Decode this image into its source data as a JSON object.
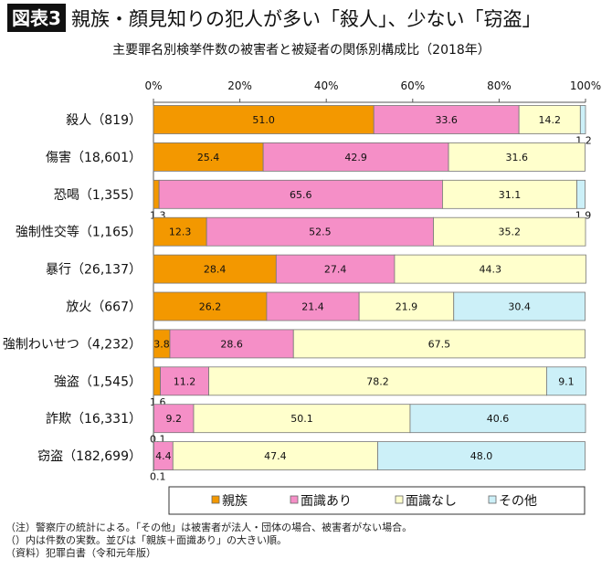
{
  "badge": "図表3",
  "title": "親族・顔見知りの犯人が多い「殺人」、少ない「窃盗」",
  "chart_data": {
    "type": "bar",
    "orientation": "horizontal",
    "stacked": true,
    "subtitle": "主要罪名別検挙件数の被害者と被疑者の関係別構成比（2018年）",
    "x_ticks": [
      "0%",
      "20%",
      "40%",
      "60%",
      "80%",
      "100%"
    ],
    "xlim": [
      0,
      100
    ],
    "categories": [
      "殺人（819）",
      "傷害（18,601）",
      "恐喝（1,355）",
      "強制性交等（1,165）",
      "暴行（26,137）",
      "放火（667）",
      "強制わいせつ（4,232）",
      "強盗（1,545）",
      "詐欺（16,331）",
      "窃盗（182,699）"
    ],
    "series": [
      {
        "name": "親族",
        "color": "#F39800",
        "values": [
          51.0,
          25.4,
          1.3,
          12.3,
          28.4,
          26.2,
          3.8,
          1.6,
          0.1,
          0.1
        ]
      },
      {
        "name": "面識あり",
        "color": "#F58FC7",
        "values": [
          33.6,
          42.9,
          65.6,
          52.5,
          27.4,
          21.4,
          28.6,
          11.2,
          9.2,
          4.4
        ]
      },
      {
        "name": "面識なし",
        "color": "#FFFFCC",
        "values": [
          14.2,
          31.6,
          31.1,
          35.2,
          44.3,
          21.9,
          67.5,
          78.2,
          50.1,
          47.4
        ]
      },
      {
        "name": "その他",
        "color": "#CCF0F8",
        "values": [
          1.2,
          null,
          1.9,
          null,
          null,
          30.4,
          null,
          9.1,
          40.6,
          48.0
        ]
      }
    ],
    "legend": "bottom",
    "grid": false
  },
  "notes": [
    "（注）警察庁の統計による。「その他」は被害者が法人・団体の場合、被害者がない場合。",
    "（）内は件数の実数。並びは「親族＋面識あり」の大きい順。",
    "（資料）犯罪白書（令和元年版）"
  ]
}
